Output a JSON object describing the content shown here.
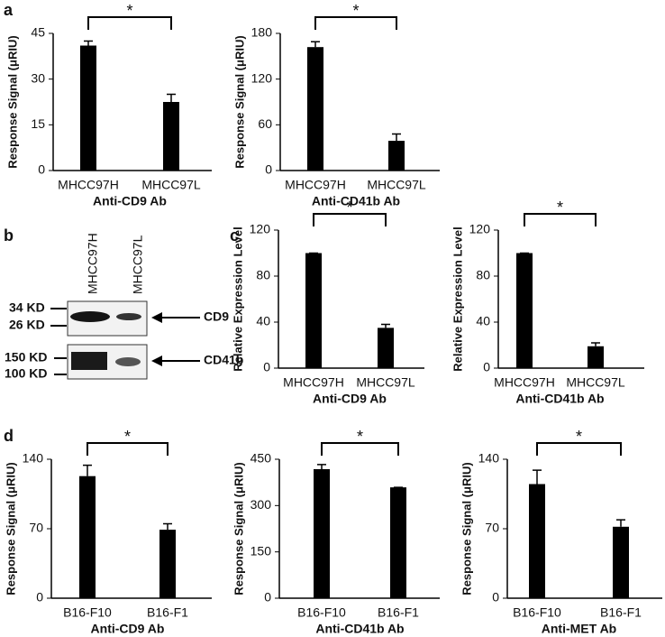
{
  "panel_labels": [
    "a",
    "b",
    "c",
    "d"
  ],
  "blot": {
    "lanes": [
      "MHCC97H",
      "MHCC97L"
    ],
    "markers": [
      "34 KD",
      "26 KD",
      "150 KD",
      "100 KD"
    ],
    "proteins": [
      "CD9",
      "CD41b"
    ]
  },
  "chart_data": [
    {
      "type": "bar",
      "ylabel": "Response Signal (μRIU)",
      "xlabel": "Anti-CD9 Ab",
      "categories": [
        "MHCC97H",
        "MHCC97L"
      ],
      "values": [
        41,
        22.5
      ],
      "errors": [
        1.5,
        2.5
      ],
      "color": "#000000",
      "ylim": [
        0,
        45
      ],
      "yticks": [
        0,
        15,
        30,
        45
      ],
      "annotation": "*"
    },
    {
      "type": "bar",
      "ylabel": "Response Signal (μRIU)",
      "xlabel": "Anti-CD41b Ab",
      "categories": [
        "MHCC97H",
        "MHCC97L"
      ],
      "values": [
        162,
        39
      ],
      "errors": [
        7,
        9
      ],
      "color": "#000000",
      "ylim": [
        0,
        180
      ],
      "yticks": [
        0,
        60,
        120,
        180
      ],
      "annotation": "*"
    },
    {
      "type": "bar",
      "ylabel": "Relative Expression Level",
      "xlabel": "Anti-CD9 Ab",
      "categories": [
        "MHCC97H",
        "MHCC97L"
      ],
      "values": [
        100,
        35
      ],
      "errors": [
        0,
        3
      ],
      "color": "#000000",
      "ylim": [
        0,
        120
      ],
      "yticks": [
        0,
        40,
        80,
        120
      ],
      "annotation": "*"
    },
    {
      "type": "bar",
      "ylabel": "Relative Expression Level",
      "xlabel": "Anti-CD41b Ab",
      "categories": [
        "MHCC97H",
        "MHCC97L"
      ],
      "values": [
        100,
        19
      ],
      "errors": [
        0,
        3
      ],
      "color": "#000000",
      "ylim": [
        0,
        120
      ],
      "yticks": [
        0,
        40,
        80,
        120
      ],
      "annotation": "*"
    },
    {
      "type": "bar",
      "ylabel": "Response Signal (μRIU)",
      "xlabel": "Anti-CD9 Ab",
      "categories": [
        "B16-F10",
        "B16-F1"
      ],
      "values": [
        123,
        69
      ],
      "errors": [
        11,
        6
      ],
      "color": "#000000",
      "ylim": [
        0,
        140
      ],
      "yticks": [
        0,
        70,
        140
      ],
      "annotation": "*"
    },
    {
      "type": "bar",
      "ylabel": "Response Signal (μRIU)",
      "xlabel": "Anti-CD41b Ab",
      "categories": [
        "B16-F10",
        "B16-F1"
      ],
      "values": [
        418,
        359
      ],
      "errors": [
        15,
        0
      ],
      "color": "#000000",
      "ylim": [
        0,
        450
      ],
      "yticks": [
        0,
        150,
        300,
        450
      ],
      "annotation": "*"
    },
    {
      "type": "bar",
      "ylabel": "Response Signal (μRIU)",
      "xlabel": "Anti-MET Ab",
      "categories": [
        "B16-F10",
        "B16-F1"
      ],
      "values": [
        115,
        72
      ],
      "errors": [
        14,
        7
      ],
      "color": "#000000",
      "ylim": [
        0,
        140
      ],
      "yticks": [
        0,
        70,
        140
      ],
      "annotation": "*"
    }
  ]
}
